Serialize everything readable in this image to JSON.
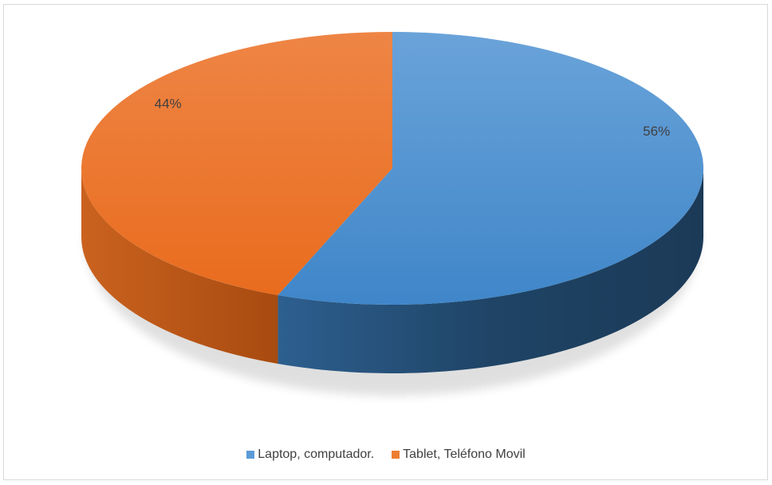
{
  "chart_data": {
    "type": "pie",
    "style": "3d",
    "title": "",
    "categories": [
      "Laptop, computador.",
      "Tablet, Teléfono Movil"
    ],
    "values": [
      56,
      44
    ],
    "labels": [
      "56%",
      "44%"
    ],
    "colors": [
      "#5b9bd5",
      "#ed7d31"
    ],
    "legend": "bottom"
  },
  "legend": {
    "items": [
      {
        "label": "Laptop, computador.",
        "color": "#5b9bd5"
      },
      {
        "label": "Tablet, Teléfono Movil",
        "color": "#ed7d31"
      }
    ]
  }
}
